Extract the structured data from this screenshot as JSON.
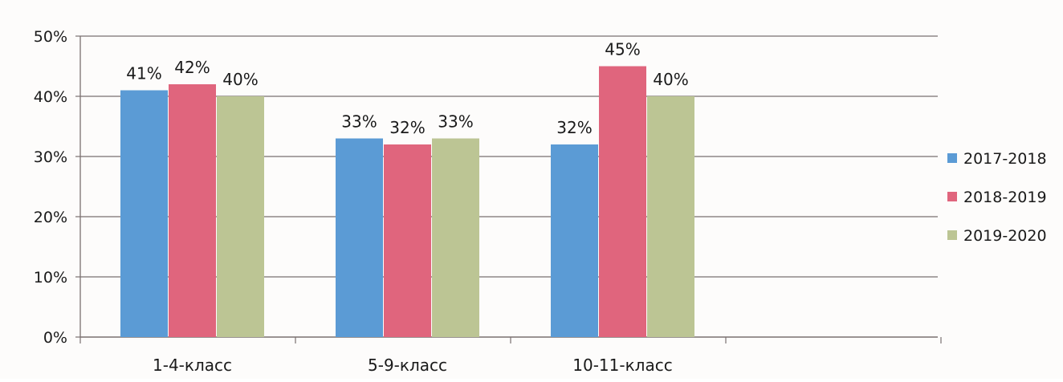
{
  "chart_data": {
    "type": "bar",
    "title": "",
    "xlabel": "",
    "ylabel": "",
    "ylim": [
      0,
      50
    ],
    "yticks": [
      0,
      10,
      20,
      30,
      40,
      50
    ],
    "ytick_labels": [
      "0%",
      "10%",
      "20%",
      "30%",
      "40%",
      "50%"
    ],
    "value_suffix": "%",
    "grid": true,
    "legend_position": "right",
    "categories": [
      "1-4-класс",
      "5-9-класс",
      "10-11-класс"
    ],
    "series": [
      {
        "name": "2017-2018",
        "color": "#5b9bd5",
        "values": [
          41,
          33,
          32
        ]
      },
      {
        "name": "2018-2019",
        "color": "#e0657d",
        "values": [
          42,
          32,
          45
        ]
      },
      {
        "name": "2019-2020",
        "color": "#bcc594",
        "values": [
          40,
          33,
          40
        ]
      }
    ]
  }
}
